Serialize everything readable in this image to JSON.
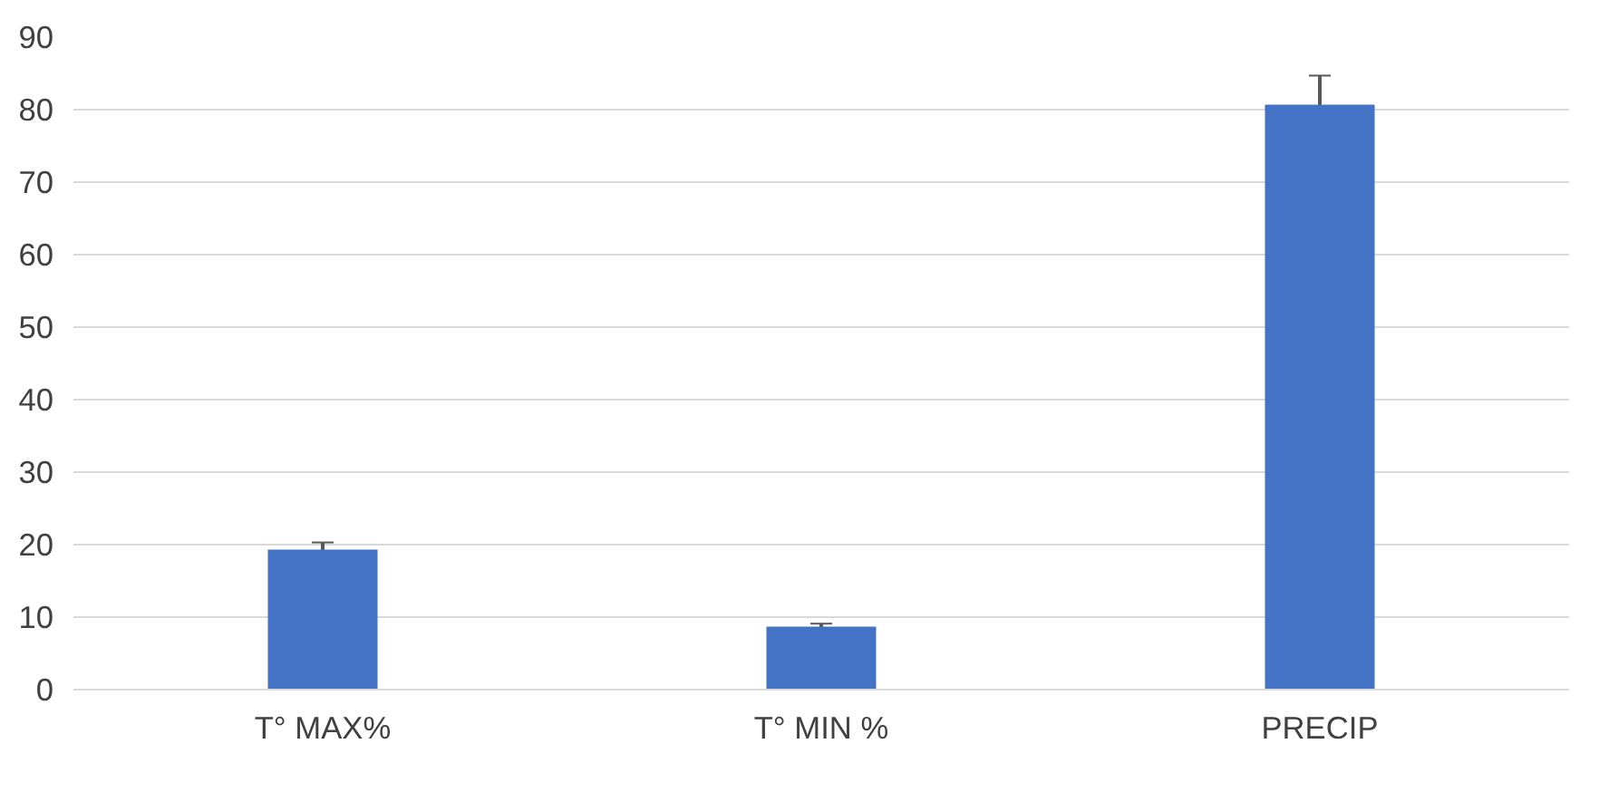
{
  "chart_data": {
    "type": "bar",
    "categories": [
      "T° MAX%",
      "T° MIN %",
      "PRECIP"
    ],
    "values": [
      19.3,
      8.7,
      80.7
    ],
    "errors": [
      1,
      0.4,
      4
    ],
    "color": "#4472c4",
    "ylim": [
      0,
      90
    ],
    "yticks": [
      0,
      10,
      20,
      30,
      40,
      50,
      60,
      70,
      80,
      90
    ],
    "grid": "y"
  }
}
